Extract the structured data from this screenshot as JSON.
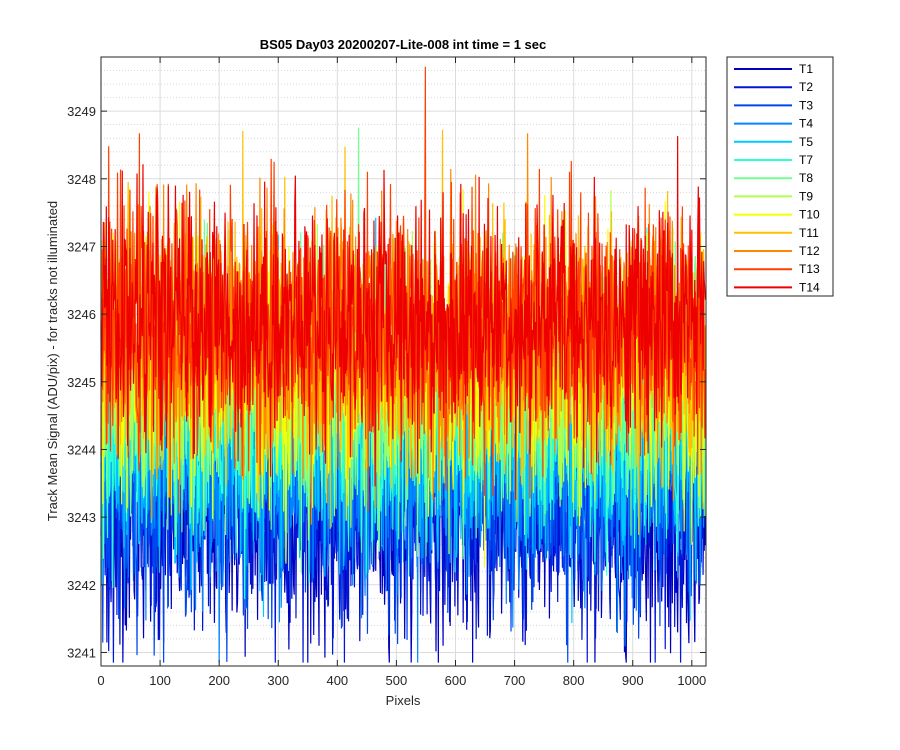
{
  "chart_data": {
    "type": "line",
    "title": "BS05 Day03 20200207-Lite-008 int time = 1 sec",
    "xlabel": "Pixels",
    "ylabel": "Track Mean Signal (ADU/pix) - for tracks not illuminated",
    "xlim": [
      0,
      1024
    ],
    "ylim": [
      3240.8,
      3249.8
    ],
    "xticks": [
      0,
      100,
      200,
      300,
      400,
      500,
      600,
      700,
      800,
      900,
      1000
    ],
    "xtick_labels": [
      "0",
      "100",
      "200",
      "300",
      "400",
      "500",
      "600",
      "700",
      "800",
      "900",
      "1000"
    ],
    "yticks": [
      3241,
      3242,
      3243,
      3244,
      3245,
      3246,
      3247,
      3248,
      3249
    ],
    "ytick_labels": [
      "3241",
      "3242",
      "3243",
      "3244",
      "3245",
      "3246",
      "3247",
      "3248",
      "3249"
    ],
    "grid": true,
    "minor_grid_y": true,
    "legend_location": "outside-top-right",
    "num_points": 1024,
    "series": [
      {
        "name": "T1",
        "color": "#0000bf",
        "mean": 3243.0,
        "noise": 0.9
      },
      {
        "name": "T2",
        "color": "#0016d6",
        "mean": 3243.2,
        "noise": 0.9
      },
      {
        "name": "T3",
        "color": "#0047f0",
        "mean": 3243.5,
        "noise": 0.9
      },
      {
        "name": "T4",
        "color": "#0088ff",
        "mean": 3243.8,
        "noise": 0.9
      },
      {
        "name": "T5",
        "color": "#00c8ff",
        "mean": 3244.2,
        "noise": 0.9
      },
      {
        "name": "T7",
        "color": "#30ffd0",
        "mean": 3244.6,
        "noise": 0.9
      },
      {
        "name": "T8",
        "color": "#70ff90",
        "mean": 3244.9,
        "noise": 0.9
      },
      {
        "name": "T9",
        "color": "#b0ff50",
        "mean": 3245.1,
        "noise": 0.9
      },
      {
        "name": "T10",
        "color": "#f8ff00",
        "mean": 3245.3,
        "noise": 0.9
      },
      {
        "name": "T11",
        "color": "#ffc000",
        "mean": 3245.5,
        "noise": 0.9
      },
      {
        "name": "T12",
        "color": "#ff8800",
        "mean": 3245.7,
        "noise": 0.9
      },
      {
        "name": "T13",
        "color": "#ff4000",
        "mean": 3245.8,
        "noise": 0.9
      },
      {
        "name": "T14",
        "color": "#ee0000",
        "mean": 3245.9,
        "noise": 0.9
      }
    ]
  }
}
